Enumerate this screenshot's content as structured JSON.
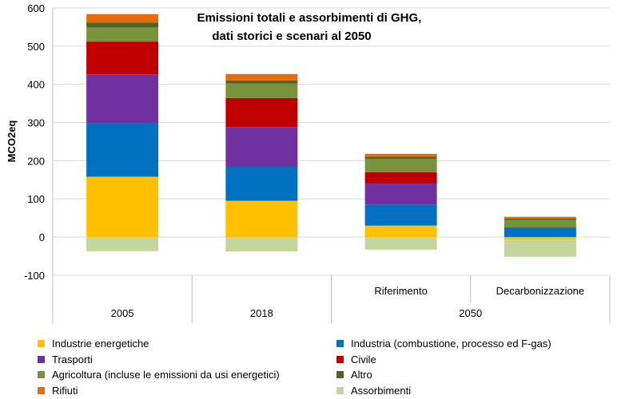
{
  "chart_data": {
    "type": "bar",
    "stacked": true,
    "title": "Emissioni totali e assorbimenti di GHG,\ndati storici e scenari al 2050",
    "ylabel": "MCO2eq",
    "ylim": [
      -100,
      600
    ],
    "yticks": [
      "600",
      "500",
      "400",
      "300",
      "200",
      "100",
      "0",
      "-100"
    ],
    "categories": [
      "2005",
      "2018",
      "Riferimento",
      "Decarbonizzazione"
    ],
    "group_label": "2050",
    "series": [
      {
        "name": "Industrie energetiche",
        "color": "#FFC000",
        "values": [
          158,
          95,
          30,
          -7
        ]
      },
      {
        "name": "Industria (combustione, processo ed F-gas)",
        "color": "#0070C0",
        "values": [
          140,
          90,
          55,
          25
        ]
      },
      {
        "name": "Trasporti",
        "color": "#7030A0",
        "values": [
          128,
          103,
          55,
          0
        ]
      },
      {
        "name": "Civile",
        "color": "#C00000",
        "values": [
          86,
          76,
          30,
          0
        ]
      },
      {
        "name": "Agricoltura (incluse le emissioni da usi energetici)",
        "color": "#77933C",
        "values": [
          37,
          38,
          35,
          20
        ]
      },
      {
        "name": "Altro",
        "color": "#4F6228",
        "values": [
          13,
          8,
          5,
          3
        ]
      },
      {
        "name": "Rifiuti",
        "color": "#E46C0A",
        "values": [
          22,
          17,
          8,
          5
        ]
      },
      {
        "name": "Assorbimenti",
        "color": "#C3D69B",
        "values": [
          -37,
          -38,
          -33,
          -45
        ]
      }
    ]
  }
}
